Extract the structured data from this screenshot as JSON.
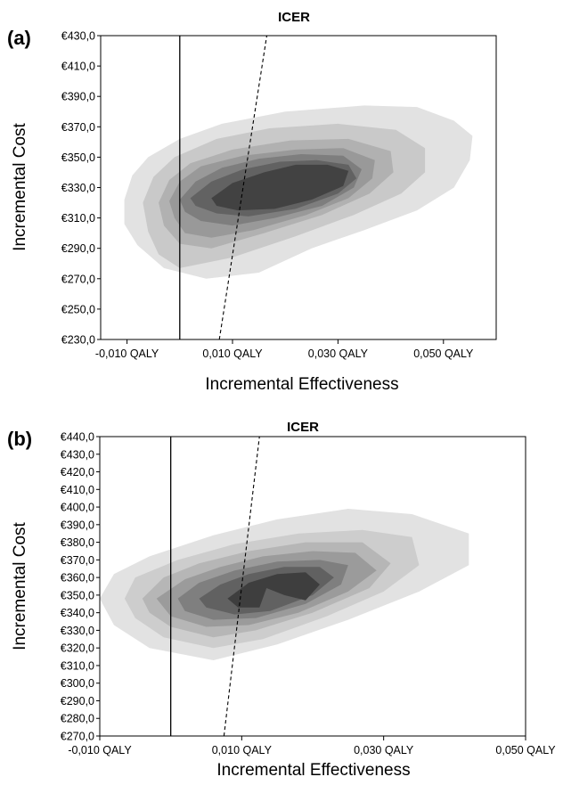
{
  "chart_data": [
    {
      "panel": "(a)",
      "type": "area",
      "title": "ICER",
      "xlabel": "Incremental Effectiveness",
      "ylabel": "Incremental Cost",
      "xlim": [
        -0.015,
        0.06
      ],
      "ylim": [
        230,
        430
      ],
      "xticks": [
        -0.01,
        0.01,
        0.03,
        0.05
      ],
      "xtick_labels": [
        "-0,010 QALY",
        "0,010 QALY",
        "0,030 QALY",
        "0,050 QALY"
      ],
      "yticks": [
        230,
        250,
        270,
        290,
        310,
        330,
        350,
        370,
        390,
        410,
        430
      ],
      "ytick_labels": [
        "€230,0",
        "€250,0",
        "€270,0",
        "€290,0",
        "€310,0",
        "€330,0",
        "€350,0",
        "€370,0",
        "€390,0",
        "€410,0",
        "€430,0"
      ],
      "vertical_line_x": 0.0,
      "threshold_line": [
        [
          0.0075,
          230
        ],
        [
          0.0165,
          430
        ]
      ],
      "density_contours": [
        {
          "level": 1,
          "color": "#e2e2e2",
          "points": [
            [
              -0.0105,
              322
            ],
            [
              -0.009,
              338
            ],
            [
              -0.006,
              350
            ],
            [
              0.0,
              362
            ],
            [
              0.008,
              372
            ],
            [
              0.02,
              380
            ],
            [
              0.035,
              384
            ],
            [
              0.045,
              383
            ],
            [
              0.052,
              374
            ],
            [
              0.0555,
              364
            ],
            [
              0.055,
              348
            ],
            [
              0.052,
              330
            ],
            [
              0.045,
              315
            ],
            [
              0.035,
              302
            ],
            [
              0.025,
              290
            ],
            [
              0.015,
              274
            ],
            [
              0.005,
              270
            ],
            [
              -0.003,
              277
            ],
            [
              -0.008,
              292
            ],
            [
              -0.0105,
              306
            ]
          ]
        },
        {
          "level": 2,
          "color": "#c9c9c9",
          "points": [
            [
              -0.007,
              320
            ],
            [
              -0.005,
              337
            ],
            [
              -0.001,
              350
            ],
            [
              0.007,
              362
            ],
            [
              0.017,
              369
            ],
            [
              0.03,
              372
            ],
            [
              0.041,
              368
            ],
            [
              0.0465,
              356
            ],
            [
              0.0465,
              340
            ],
            [
              0.042,
              326
            ],
            [
              0.033,
              312
            ],
            [
              0.022,
              298
            ],
            [
              0.01,
              284
            ],
            [
              0.0,
              277
            ],
            [
              -0.004,
              286
            ],
            [
              -0.006,
              301
            ]
          ]
        },
        {
          "level": 3,
          "color": "#b1b1b1",
          "points": [
            [
              -0.004,
              320
            ],
            [
              -0.002,
              335
            ],
            [
              0.002,
              346
            ],
            [
              0.01,
              355
            ],
            [
              0.021,
              361
            ],
            [
              0.032,
              362
            ],
            [
              0.04,
              354
            ],
            [
              0.0405,
              340
            ],
            [
              0.036,
              326
            ],
            [
              0.027,
              312
            ],
            [
              0.016,
              300
            ],
            [
              0.006,
              290
            ],
            [
              0.0,
              293
            ],
            [
              -0.003,
              305
            ]
          ]
        },
        {
          "level": 4,
          "color": "#999999",
          "points": [
            [
              -0.002,
              321
            ],
            [
              0.0,
              334
            ],
            [
              0.004,
              344
            ],
            [
              0.012,
              351
            ],
            [
              0.022,
              355
            ],
            [
              0.031,
              356
            ],
            [
              0.037,
              348
            ],
            [
              0.0365,
              336
            ],
            [
              0.032,
              323
            ],
            [
              0.024,
              312
            ],
            [
              0.014,
              302
            ],
            [
              0.006,
              297
            ],
            [
              0.001,
              300
            ],
            [
              -0.001,
              310
            ]
          ]
        },
        {
          "level": 5,
          "color": "#7e7e7e",
          "points": [
            [
              0.0,
              322
            ],
            [
              0.003,
              334
            ],
            [
              0.008,
              343
            ],
            [
              0.015,
              349
            ],
            [
              0.023,
              352
            ],
            [
              0.031,
              351
            ],
            [
              0.0345,
              342
            ],
            [
              0.033,
              330
            ],
            [
              0.027,
              318
            ],
            [
              0.018,
              310
            ],
            [
              0.01,
              305
            ],
            [
              0.004,
              308
            ],
            [
              0.001,
              314
            ]
          ]
        },
        {
          "level": 6,
          "color": "#626262",
          "points": [
            [
              0.002,
              323
            ],
            [
              0.006,
              334
            ],
            [
              0.012,
              342
            ],
            [
              0.019,
              347
            ],
            [
              0.026,
              348
            ],
            [
              0.032,
              345
            ],
            [
              0.0335,
              336
            ],
            [
              0.03,
              326
            ],
            [
              0.022,
              316
            ],
            [
              0.013,
              311
            ],
            [
              0.007,
              313
            ],
            [
              0.003,
              318
            ]
          ]
        },
        {
          "level": 7,
          "color": "#424242",
          "points": [
            [
              0.006,
              323
            ],
            [
              0.01,
              333
            ],
            [
              0.016,
              340
            ],
            [
              0.022,
              345
            ],
            [
              0.028,
              345
            ],
            [
              0.032,
              341
            ],
            [
              0.031,
              331
            ],
            [
              0.025,
              322
            ],
            [
              0.018,
              316
            ],
            [
              0.011,
              315
            ],
            [
              0.007,
              318
            ]
          ]
        }
      ]
    },
    {
      "panel": "(b)",
      "type": "area",
      "title": "ICER",
      "xlabel": "Incremental Effectiveness",
      "ylabel": "Incremental Cost",
      "xlim": [
        -0.01,
        0.05
      ],
      "ylim": [
        270,
        440
      ],
      "xticks": [
        -0.01,
        0.01,
        0.03,
        0.05
      ],
      "xtick_labels": [
        "-0,010 QALY",
        "0,010 QALY",
        "0,030 QALY",
        "0,050 QALY"
      ],
      "yticks": [
        270,
        280,
        290,
        300,
        310,
        320,
        330,
        340,
        350,
        360,
        370,
        380,
        390,
        400,
        410,
        420,
        430,
        440
      ],
      "ytick_labels": [
        "€270,0",
        "€280,0",
        "€290,0",
        "€300,0",
        "€310,0",
        "€320,0",
        "€330,0",
        "€340,0",
        "€350,0",
        "€360,0",
        "€370,0",
        "€380,0",
        "€390,0",
        "€400,0",
        "€410,0",
        "€420,0",
        "€430,0",
        "€440,0"
      ],
      "vertical_line_x": 0.0,
      "threshold_line": [
        [
          0.0075,
          270
        ],
        [
          0.0125,
          440
        ]
      ],
      "density_contours": [
        {
          "level": 1,
          "color": "#e2e2e2",
          "points": [
            [
              -0.01,
              348
            ],
            [
              -0.008,
              362
            ],
            [
              -0.003,
              372
            ],
            [
              0.006,
              384
            ],
            [
              0.015,
              393
            ],
            [
              0.025,
              399
            ],
            [
              0.034,
              396
            ],
            [
              0.042,
              385
            ],
            [
              0.042,
              367
            ],
            [
              0.035,
              352
            ],
            [
              0.025,
              336
            ],
            [
              0.015,
              322
            ],
            [
              0.006,
              313
            ],
            [
              -0.003,
              320
            ],
            [
              -0.008,
              333
            ]
          ]
        },
        {
          "level": 2,
          "color": "#cdcdcd",
          "points": [
            [
              -0.0065,
              348
            ],
            [
              -0.005,
              360
            ],
            [
              0.001,
              370
            ],
            [
              0.009,
              379
            ],
            [
              0.018,
              385
            ],
            [
              0.027,
              387
            ],
            [
              0.034,
              383
            ],
            [
              0.035,
              367
            ],
            [
              0.03,
              352
            ],
            [
              0.022,
              338
            ],
            [
              0.013,
              325
            ],
            [
              0.006,
              320
            ],
            [
              -0.001,
              326
            ],
            [
              -0.005,
              337
            ]
          ]
        },
        {
          "level": 3,
          "color": "#b6b6b6",
          "points": [
            [
              -0.004,
              348
            ],
            [
              -0.001,
              360
            ],
            [
              0.004,
              368
            ],
            [
              0.011,
              375
            ],
            [
              0.019,
              380
            ],
            [
              0.027,
              380
            ],
            [
              0.031,
              368
            ],
            [
              0.028,
              354
            ],
            [
              0.02,
              340
            ],
            [
              0.012,
              330
            ],
            [
              0.006,
              326
            ],
            [
              0.0,
              332
            ],
            [
              -0.003,
              340
            ]
          ]
        },
        {
          "level": 4,
          "color": "#9b9b9b",
          "points": [
            [
              -0.002,
              348
            ],
            [
              0.002,
              359
            ],
            [
              0.007,
              366
            ],
            [
              0.013,
              372
            ],
            [
              0.02,
              375
            ],
            [
              0.026,
              374
            ],
            [
              0.029,
              364
            ],
            [
              0.025,
              352
            ],
            [
              0.018,
              340
            ],
            [
              0.011,
              333
            ],
            [
              0.005,
              332
            ],
            [
              0.0,
              338
            ]
          ]
        },
        {
          "level": 5,
          "color": "#7f7f7f",
          "points": [
            [
              0.001,
              348
            ],
            [
              0.004,
              357
            ],
            [
              0.009,
              364
            ],
            [
              0.015,
              369
            ],
            [
              0.021,
              370
            ],
            [
              0.025,
              367
            ],
            [
              0.024,
              356
            ],
            [
              0.019,
              345
            ],
            [
              0.012,
              337
            ],
            [
              0.006,
              336
            ],
            [
              0.002,
              341
            ]
          ]
        },
        {
          "level": 6,
          "color": "#616161",
          "points": [
            [
              0.004,
              348
            ],
            [
              0.007,
              356
            ],
            [
              0.011,
              362
            ],
            [
              0.016,
              366
            ],
            [
              0.021,
              366
            ],
            [
              0.023,
              360
            ],
            [
              0.02,
              350
            ],
            [
              0.014,
              341
            ],
            [
              0.009,
              339
            ],
            [
              0.005,
              343
            ]
          ]
        },
        {
          "level": 7,
          "color": "#3e3e3e",
          "points": [
            [
              0.008,
              348
            ],
            [
              0.011,
              357
            ],
            [
              0.015,
              362
            ],
            [
              0.019,
              363
            ],
            [
              0.021,
              356
            ],
            [
              0.019,
              347
            ],
            [
              0.016,
              350
            ],
            [
              0.0135,
              354
            ],
            [
              0.0125,
              343
            ],
            [
              0.0095,
              343
            ]
          ]
        }
      ]
    }
  ]
}
